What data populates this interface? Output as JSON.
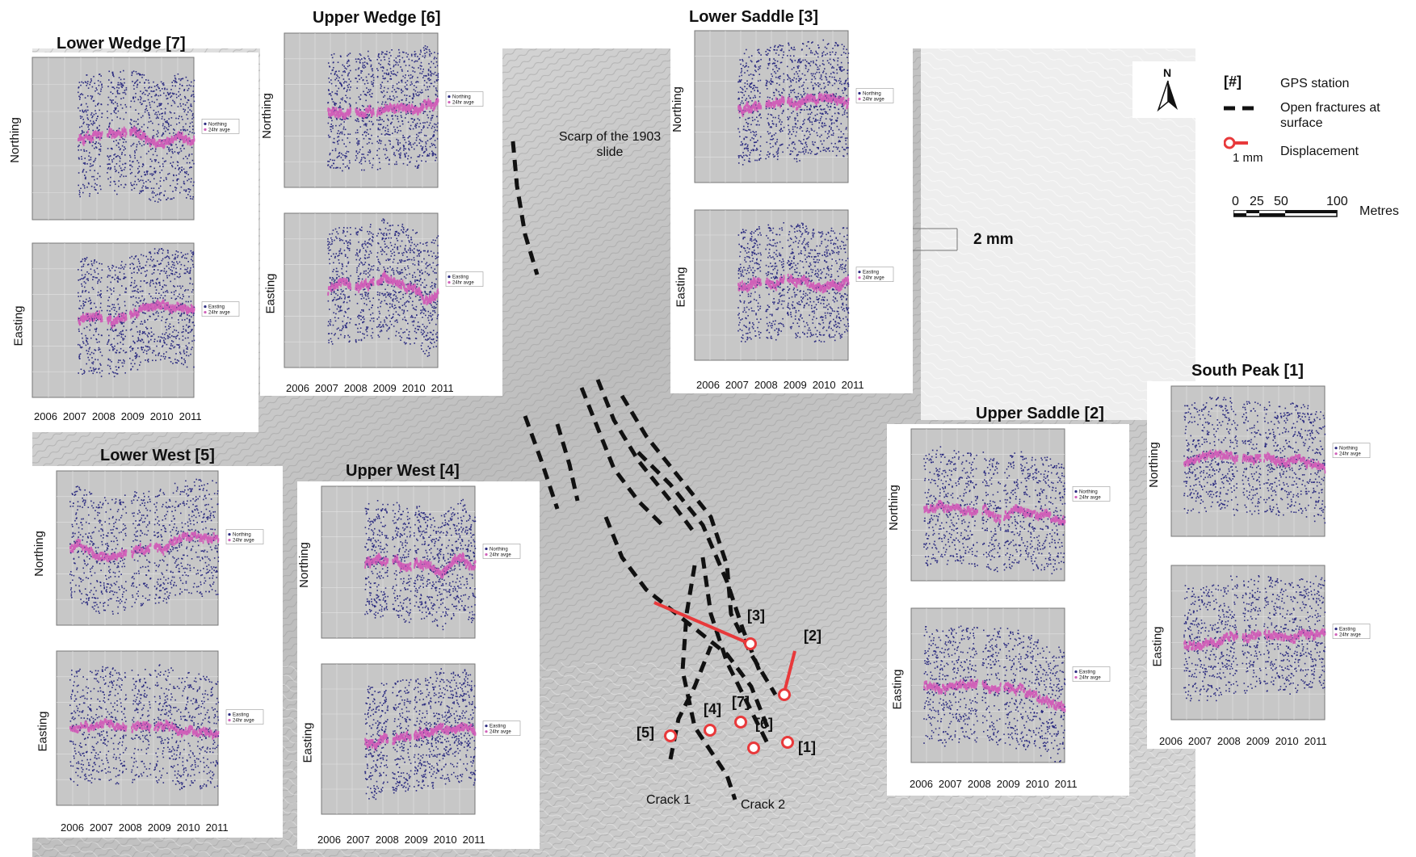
{
  "map": {
    "scarp_label": "Scarp of the 1903 slide",
    "crack_labels": [
      "Crack 1",
      "Crack 2"
    ],
    "stations": [
      "[1]",
      "[2]",
      "[3]",
      "[4]",
      "[5]",
      "[6]",
      "[7]"
    ],
    "scale_annotation": "2 mm",
    "colors": {
      "displacement": "#e8393b",
      "fracture": "#111111",
      "hillshade": "#c9c9c9"
    }
  },
  "legend": {
    "gps_symbol": "[#]",
    "gps_label": "GPS station",
    "fracture_label": "Open fractures at surface",
    "displacement_unit": "1 mm",
    "displacement_label": "Displacement",
    "scale_ticks": [
      "0",
      "25",
      "50",
      "100"
    ],
    "scale_unit": "Metres",
    "north": "N"
  },
  "panels": [
    {
      "name": "lower-wedge",
      "title": "Lower Wedge [7]",
      "years": [
        "2006",
        "2007",
        "2008",
        "2009",
        "2010",
        "2011"
      ],
      "plots": [
        {
          "ylabel": "Northing",
          "legend": [
            "Northing",
            "24hr avge"
          ]
        },
        {
          "ylabel": "Easting",
          "legend": [
            "Easting",
            "24hr avge"
          ]
        }
      ]
    },
    {
      "name": "upper-wedge",
      "title": "Upper Wedge [6]",
      "years": [
        "2006",
        "2007",
        "2008",
        "2009",
        "2010",
        "2011"
      ],
      "plots": [
        {
          "ylabel": "Northing",
          "legend": [
            "Northing",
            "24hr avge"
          ]
        },
        {
          "ylabel": "Easting",
          "legend": [
            "Easting",
            "24hr avge"
          ]
        }
      ]
    },
    {
      "name": "lower-saddle",
      "title": "Lower Saddle [3]",
      "years": [
        "2006",
        "2007",
        "2008",
        "2009",
        "2010",
        "2011"
      ],
      "plots": [
        {
          "ylabel": "Northing",
          "legend": [
            "Northing",
            "24hr avge"
          ]
        },
        {
          "ylabel": "Easting",
          "legend": [
            "Easting",
            "24hr avge"
          ]
        }
      ]
    },
    {
      "name": "lower-west",
      "title": "Lower West [5]",
      "years": [
        "2006",
        "2007",
        "2008",
        "2009",
        "2010",
        "2011"
      ],
      "plots": [
        {
          "ylabel": "Northing",
          "legend": [
            "Northing",
            "24hr avge"
          ]
        },
        {
          "ylabel": "Easting",
          "legend": [
            "Easting",
            "24hr avge"
          ]
        }
      ]
    },
    {
      "name": "upper-west",
      "title": "Upper West [4]",
      "years": [
        "2006",
        "2007",
        "2008",
        "2009",
        "2010",
        "2011"
      ],
      "plots": [
        {
          "ylabel": "Northing",
          "legend": [
            "Northing",
            "24hr avge"
          ]
        },
        {
          "ylabel": "Easting",
          "legend": [
            "Easting",
            "24hr avge"
          ]
        }
      ]
    },
    {
      "name": "upper-saddle",
      "title": "Upper Saddle [2]",
      "years": [
        "2006",
        "2007",
        "2008",
        "2009",
        "2010",
        "2011"
      ],
      "plots": [
        {
          "ylabel": "Northing",
          "legend": [
            "Northing",
            "24hr avge"
          ]
        },
        {
          "ylabel": "Easting",
          "legend": [
            "Easting",
            "24hr avge"
          ]
        }
      ]
    },
    {
      "name": "south-peak",
      "title": "South Peak [1]",
      "years": [
        "2006",
        "2007",
        "2008",
        "2009",
        "2010",
        "2011"
      ],
      "plots": [
        {
          "ylabel": "Northing",
          "legend": [
            "Northing",
            "24hr avge"
          ]
        },
        {
          "ylabel": "Easting",
          "legend": [
            "Easting",
            "24hr avge"
          ]
        }
      ]
    }
  ]
}
